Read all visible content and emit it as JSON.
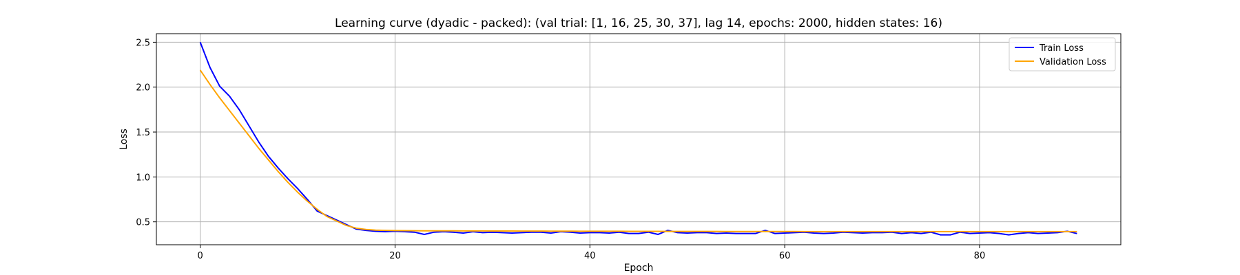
{
  "chart_data": {
    "type": "line",
    "title": "Learning curve (dyadic - packed): (val trial: [1, 16, 25, 30, 37], lag 14, epochs: 2000, hidden states: 16)",
    "xlabel": "Epoch",
    "ylabel": "Loss",
    "xlim": [
      -4.5,
      94.5
    ],
    "ylim": [
      0.245,
      2.595
    ],
    "x_ticks": [
      0,
      20,
      40,
      60,
      80
    ],
    "y_ticks": [
      0.5,
      1.0,
      1.5,
      2.0,
      2.5
    ],
    "x_tick_labels": [
      "0",
      "20",
      "40",
      "60",
      "80"
    ],
    "y_tick_labels": [
      "0.5",
      "1.0",
      "1.5",
      "2.0",
      "2.5"
    ],
    "grid": true,
    "legend_position": "top-right",
    "series": [
      {
        "name": "Train Loss",
        "color": "#0000ff",
        "values": [
          2.5,
          2.22,
          2.01,
          1.9,
          1.75,
          1.57,
          1.39,
          1.23,
          1.1,
          0.98,
          0.87,
          0.75,
          0.62,
          0.57,
          0.52,
          0.47,
          0.42,
          0.405,
          0.395,
          0.39,
          0.395,
          0.39,
          0.385,
          0.36,
          0.385,
          0.39,
          0.385,
          0.375,
          0.39,
          0.38,
          0.385,
          0.38,
          0.375,
          0.38,
          0.385,
          0.385,
          0.375,
          0.39,
          0.385,
          0.375,
          0.38,
          0.38,
          0.375,
          0.385,
          0.37,
          0.37,
          0.385,
          0.36,
          0.405,
          0.38,
          0.375,
          0.38,
          0.38,
          0.37,
          0.375,
          0.37,
          0.37,
          0.37,
          0.405,
          0.37,
          0.375,
          0.38,
          0.385,
          0.375,
          0.37,
          0.375,
          0.385,
          0.38,
          0.375,
          0.38,
          0.38,
          0.385,
          0.37,
          0.38,
          0.37,
          0.385,
          0.355,
          0.355,
          0.385,
          0.37,
          0.375,
          0.38,
          0.37,
          0.355,
          0.37,
          0.38,
          0.37,
          0.375,
          0.38,
          0.395,
          0.37
        ]
      },
      {
        "name": "Validation Loss",
        "color": "#ffa500",
        "values": [
          2.19,
          2.03,
          1.88,
          1.74,
          1.6,
          1.46,
          1.32,
          1.19,
          1.06,
          0.94,
          0.83,
          0.73,
          0.64,
          0.56,
          0.51,
          0.46,
          0.43,
          0.415,
          0.408,
          0.405,
          0.403,
          0.402,
          0.401,
          0.4,
          0.4,
          0.4,
          0.4,
          0.399,
          0.399,
          0.399,
          0.398,
          0.398,
          0.398,
          0.397,
          0.397,
          0.397,
          0.396,
          0.396,
          0.396,
          0.395,
          0.395,
          0.395,
          0.395,
          0.395,
          0.394,
          0.394,
          0.394,
          0.394,
          0.393,
          0.393,
          0.393,
          0.393,
          0.393,
          0.393,
          0.392,
          0.392,
          0.392,
          0.392,
          0.392,
          0.392,
          0.392,
          0.392,
          0.391,
          0.391,
          0.391,
          0.391,
          0.391,
          0.391,
          0.391,
          0.391,
          0.391,
          0.391,
          0.391,
          0.391,
          0.391,
          0.391,
          0.391,
          0.391,
          0.391,
          0.391,
          0.391,
          0.391,
          0.391,
          0.391,
          0.391,
          0.391,
          0.391,
          0.391,
          0.391,
          0.391,
          0.391
        ]
      }
    ]
  }
}
